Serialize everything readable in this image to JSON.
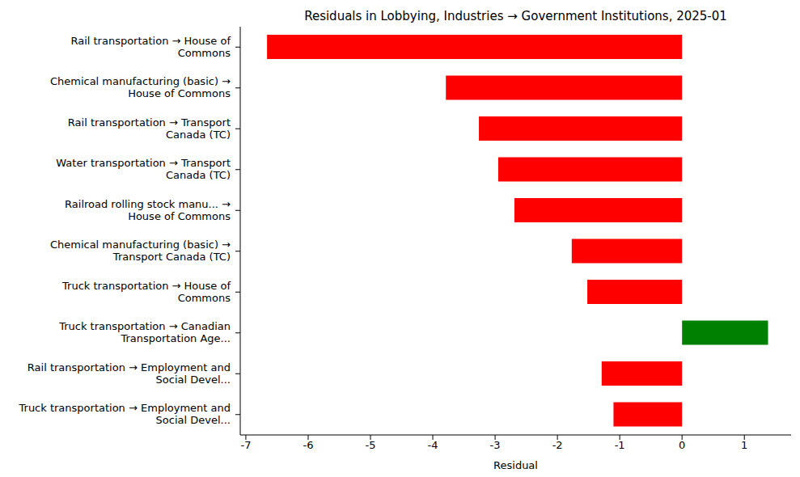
{
  "chart_data": {
    "type": "bar",
    "title": "Residuals in Lobbying, Industries → Government Institutions, 2025-01",
    "x_label": "Residual",
    "orientation": "horizontal",
    "categories": [
      "Rail transportation → House of\nCommons",
      "Chemical manufacturing (basic) →\nHouse of Commons",
      "Rail transportation → Transport\nCanada (TC)",
      "Water transportation → Transport\nCanada (TC)",
      "Railroad rolling stock manu... →\nHouse of Commons",
      "Chemical manufacturing (basic) →\nTransport Canada (TC)",
      "Truck transportation → House of\nCommons",
      "Truck transportation → Canadian\nTransportation Age...",
      "Rail transportation → Employment and\nSocial Devel...",
      "Truck transportation → Employment and\nSocial Devel..."
    ],
    "values": [
      -6.66,
      -3.79,
      -3.26,
      -2.95,
      -2.69,
      -1.77,
      -1.52,
      1.38,
      -1.29,
      -1.1
    ],
    "colors": [
      "#ff0000",
      "#ff0000",
      "#ff0000",
      "#ff0000",
      "#ff0000",
      "#ff0000",
      "#ff0000",
      "#008000",
      "#ff0000",
      "#ff0000"
    ],
    "xlim": [
      -7.09,
      1.75
    ],
    "xticks": [
      -7,
      -6,
      -5,
      -4,
      -3,
      -2,
      -1,
      0,
      1
    ],
    "grid": false
  }
}
